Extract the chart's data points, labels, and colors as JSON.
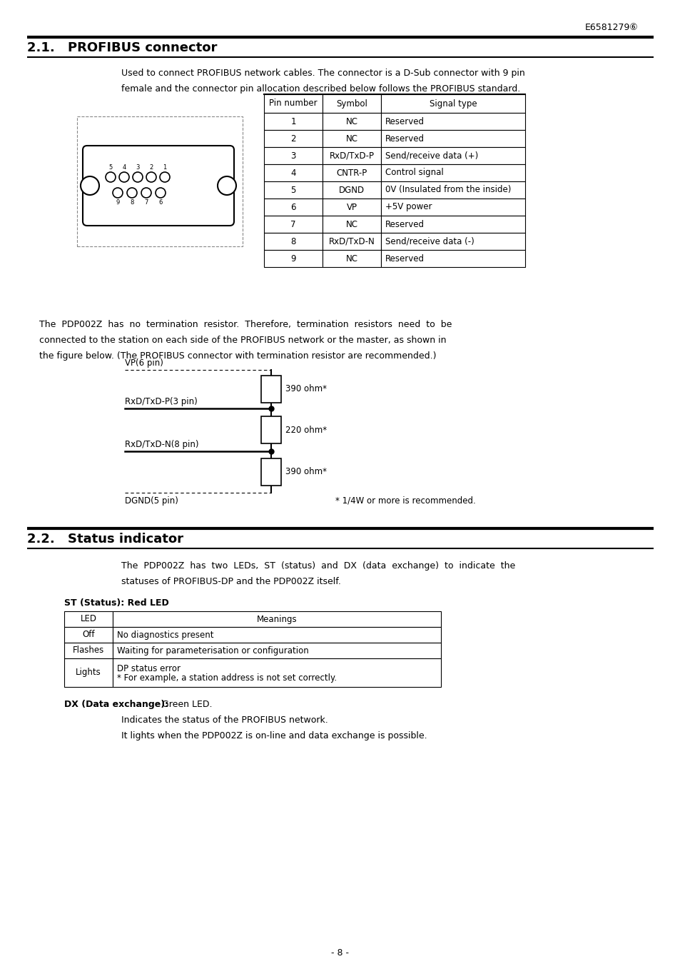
{
  "page_num": "E6581279⑥",
  "section1_title_num": "2.1.  ",
  "section1_title_text": "PROFIBUS connector",
  "section1_intro1": "Used to connect PROFIBUS network cables. The connector is a D-Sub connector with 9 pin",
  "section1_intro2": "female and the connector pin allocation described below follows the PROFIBUS standard.",
  "table_headers": [
    "Pin number",
    "Symbol",
    "Signal type"
  ],
  "table_rows": [
    [
      "1",
      "NC",
      "Reserved"
    ],
    [
      "2",
      "NC",
      "Reserved"
    ],
    [
      "3",
      "RxD/TxD-P",
      "Send/receive data (+)"
    ],
    [
      "4",
      "CNTR-P",
      "Control signal"
    ],
    [
      "5",
      "DGND",
      "0V (Insulated from the inside)"
    ],
    [
      "6",
      "VP",
      "+5V power"
    ],
    [
      "7",
      "NC",
      "Reserved"
    ],
    [
      "8",
      "RxD/TxD-N",
      "Send/receive data (-)"
    ],
    [
      "9",
      "NC",
      "Reserved"
    ]
  ],
  "para2_line1": "The  PDP002Z  has  no  termination  resistor.  Therefore,  termination  resistors  need  to  be",
  "para2_line2": "connected to the station on each side of the PROFIBUS network or the master, as shown in",
  "para2_line3": "the figure below. (The PROFIBUS connector with termination resistor are recommended.)",
  "circuit_labels": [
    "VP(6 pin)",
    "RxD/TxD-P(3 pin)",
    "RxD/TxD-N(8 pin)",
    "DGND(5 pin)"
  ],
  "resistor_labels": [
    "390 ohm*",
    "220 ohm*",
    "390 ohm*"
  ],
  "footnote": "* 1/4W or more is recommended.",
  "section2_title_num": "2.2.  ",
  "section2_title_text": "Status indicator",
  "section2_intro1": "The  PDP002Z  has  two  LEDs,  ST  (status)  and  DX  (data  exchange)  to  indicate  the",
  "section2_intro2": "statuses of PROFIBUS-DP and the PDP002Z itself.",
  "st_label": "ST (Status): Red LED",
  "st_table_headers": [
    "LED",
    "Meanings"
  ],
  "st_table_rows": [
    [
      "Off",
      "No diagnostics present"
    ],
    [
      "Flashes",
      "Waiting for parameterisation or configuration"
    ],
    [
      "Lights",
      "DP status error\n* For example, a station address is not set correctly."
    ]
  ],
  "dx_bold": "DX (Data exchange):",
  "dx_normal": " Green LED.",
  "dx_line1": "Indicates the status of the PROFIBUS network.",
  "dx_line2": "It lights when the PDP002Z is on-line and data exchange is possible.",
  "page_footer": "- 8 -",
  "bg_color": "#ffffff",
  "text_color": "#000000"
}
